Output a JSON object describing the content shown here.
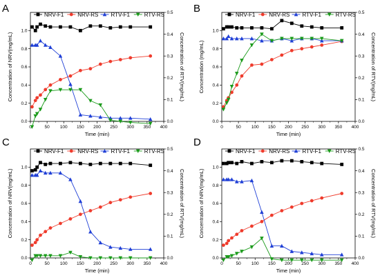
{
  "legend_labels": [
    "NRV-F1",
    "NRV-RS",
    "RTV-F1",
    "RTV-RS"
  ],
  "colors": {
    "NRV-F1": "#000000",
    "NRV-RS": "#ef3b2c",
    "RTV-F1": "#1f3fd6",
    "RTV-RS": "#1a9a1a"
  },
  "chart_data": [
    {
      "type": "line",
      "panel": "A",
      "xlabel": "Time (min)",
      "ylabel_left": "Concentration of NRV(mg/mL)",
      "ylabel_right": "Concentration of RTV(mg/mL)",
      "xlim": [
        0,
        400
      ],
      "ylim_left": [
        0,
        1.2
      ],
      "ylim_right": [
        0,
        0.5
      ],
      "xticks": [
        0,
        50,
        100,
        150,
        200,
        250,
        300,
        350,
        400
      ],
      "yticks_left": [
        0.0,
        0.2,
        0.4,
        0.6,
        0.8,
        1.0
      ],
      "yticks_right": [
        0.0,
        0.1,
        0.2,
        0.3,
        0.4,
        0.5
      ],
      "series": [
        {
          "name": "NRV-F1",
          "axis": "left",
          "marker": "square",
          "x": [
            5,
            15,
            20,
            30,
            45,
            60,
            90,
            120,
            150,
            180,
            210,
            240,
            270,
            300,
            360
          ],
          "y": [
            1.04,
            1.0,
            1.04,
            1.07,
            1.05,
            1.04,
            1.04,
            1.04,
            1.0,
            1.05,
            1.05,
            1.03,
            1.04,
            1.04,
            1.04
          ]
        },
        {
          "name": "NRV-RS",
          "axis": "left",
          "marker": "circle",
          "x": [
            5,
            15,
            20,
            30,
            45,
            60,
            90,
            120,
            150,
            180,
            210,
            240,
            270,
            300,
            360
          ],
          "y": [
            0.16,
            0.23,
            0.26,
            0.29,
            0.35,
            0.4,
            0.46,
            0.5,
            0.56,
            0.58,
            0.63,
            0.66,
            0.68,
            0.7,
            0.72
          ]
        },
        {
          "name": "RTV-F1",
          "axis": "right",
          "marker": "triangle-up",
          "x": [
            5,
            15,
            20,
            30,
            45,
            60,
            90,
            120,
            150,
            180,
            210,
            240,
            270,
            300,
            360
          ],
          "y": [
            0.35,
            0.35,
            0.35,
            0.37,
            0.35,
            0.34,
            0.3,
            0.17,
            0.03,
            0.025,
            0.02,
            0.015,
            0.015,
            0.015,
            0.01
          ]
        },
        {
          "name": "RTV-RS",
          "axis": "right",
          "marker": "triangle-down",
          "x": [
            5,
            15,
            20,
            30,
            45,
            60,
            90,
            120,
            150,
            180,
            210,
            240,
            270,
            300,
            360
          ],
          "y": [
            -0.025,
            0.025,
            0.035,
            0.055,
            0.1,
            0.14,
            0.145,
            0.145,
            0.145,
            0.095,
            0.075,
            0.005,
            0.0,
            -0.005,
            -0.01
          ]
        }
      ]
    },
    {
      "type": "line",
      "panel": "B",
      "xlabel": "Time (min)",
      "ylabel_left": "Concentration (mg/mL)",
      "ylabel_right": "Concentration of RTV(mg/mL)",
      "xlim": [
        0,
        400
      ],
      "ylim_left": [
        0,
        1.2
      ],
      "ylim_right": [
        0,
        0.5
      ],
      "xticks": [
        0,
        50,
        100,
        150,
        200,
        250,
        300,
        350,
        400
      ],
      "yticks_left": [
        0.0,
        0.2,
        0.4,
        0.6,
        0.8,
        1.0
      ],
      "yticks_right": [
        0.0,
        0.1,
        0.2,
        0.3,
        0.4,
        0.5
      ],
      "series": [
        {
          "name": "NRV-F1",
          "axis": "left",
          "marker": "square",
          "x": [
            5,
            15,
            20,
            30,
            45,
            60,
            90,
            120,
            150,
            180,
            210,
            240,
            270,
            300,
            360
          ],
          "y": [
            1.02,
            1.04,
            1.04,
            1.04,
            1.03,
            1.03,
            1.03,
            1.03,
            1.02,
            1.11,
            1.08,
            1.05,
            1.04,
            1.03,
            1.03
          ]
        },
        {
          "name": "NRV-RS",
          "axis": "left",
          "marker": "circle",
          "x": [
            5,
            15,
            20,
            30,
            45,
            60,
            90,
            120,
            150,
            180,
            210,
            240,
            270,
            300,
            360
          ],
          "y": [
            0.16,
            0.23,
            0.26,
            0.32,
            0.4,
            0.5,
            0.62,
            0.63,
            0.68,
            0.73,
            0.78,
            0.8,
            0.82,
            0.84,
            0.88
          ]
        },
        {
          "name": "RTV-F1",
          "axis": "right",
          "marker": "triangle-up",
          "x": [
            5,
            15,
            20,
            30,
            45,
            60,
            90,
            120,
            150,
            180,
            210,
            240,
            270,
            300,
            360
          ],
          "y": [
            0.38,
            0.38,
            0.39,
            0.38,
            0.38,
            0.38,
            0.38,
            0.37,
            0.37,
            0.38,
            0.37,
            0.38,
            0.38,
            0.37,
            0.37
          ]
        },
        {
          "name": "RTV-RS",
          "axis": "right",
          "marker": "triangle-down",
          "x": [
            5,
            15,
            20,
            30,
            45,
            60,
            90,
            120,
            150,
            180,
            210,
            240,
            270,
            300,
            360
          ],
          "y": [
            0.055,
            0.085,
            0.1,
            0.16,
            0.22,
            0.28,
            0.35,
            0.4,
            0.37,
            0.38,
            0.38,
            0.38,
            0.38,
            0.38,
            0.37
          ]
        }
      ]
    },
    {
      "type": "line",
      "panel": "C",
      "xlabel": "Time (min)",
      "ylabel_left": "Concentration of NRV(mg/mL)",
      "ylabel_right": "Concentration of RTV(mg/mL)",
      "xlim": [
        0,
        400
      ],
      "ylim_left": [
        0,
        1.2
      ],
      "ylim_right": [
        0,
        0.5
      ],
      "xticks": [
        0,
        50,
        100,
        150,
        200,
        250,
        300,
        350,
        400
      ],
      "yticks_left": [
        0.0,
        0.2,
        0.4,
        0.6,
        0.8,
        1.0
      ],
      "yticks_right": [
        0.0,
        0.1,
        0.2,
        0.3,
        0.4,
        0.5
      ],
      "series": [
        {
          "name": "NRV-F1",
          "axis": "left",
          "marker": "square",
          "x": [
            5,
            15,
            20,
            30,
            45,
            60,
            90,
            120,
            150,
            180,
            210,
            240,
            270,
            300,
            360
          ],
          "y": [
            0.96,
            0.97,
            1.0,
            1.05,
            1.03,
            1.04,
            1.04,
            1.05,
            1.04,
            1.03,
            1.04,
            1.04,
            1.04,
            1.04,
            1.02
          ]
        },
        {
          "name": "NRV-RS",
          "axis": "left",
          "marker": "circle",
          "x": [
            5,
            15,
            20,
            30,
            45,
            60,
            90,
            120,
            150,
            180,
            210,
            240,
            270,
            300,
            360
          ],
          "y": [
            0.14,
            0.17,
            0.2,
            0.25,
            0.29,
            0.33,
            0.38,
            0.43,
            0.48,
            0.52,
            0.56,
            0.61,
            0.64,
            0.67,
            0.71
          ]
        },
        {
          "name": "RTV-F1",
          "axis": "right",
          "marker": "triangle-up",
          "x": [
            5,
            15,
            20,
            30,
            45,
            60,
            90,
            120,
            150,
            180,
            210,
            240,
            270,
            300,
            360
          ],
          "y": [
            0.38,
            0.38,
            0.38,
            0.4,
            0.39,
            0.39,
            0.39,
            0.36,
            0.26,
            0.12,
            0.07,
            0.05,
            0.045,
            0.04,
            0.04
          ]
        },
        {
          "name": "RTV-RS",
          "axis": "right",
          "marker": "triangle-down",
          "x": [
            5,
            15,
            20,
            30,
            45,
            60,
            90,
            120,
            150,
            180,
            210,
            240,
            270,
            300,
            360
          ],
          "y": [
            -0.01,
            0.01,
            0.01,
            0.01,
            0.01,
            0.01,
            0.01,
            0.025,
            0.005,
            0.0,
            0.0,
            0.0,
            0.0,
            0.0,
            0.0
          ]
        }
      ]
    },
    {
      "type": "line",
      "panel": "D",
      "xlabel": "Time (min)",
      "ylabel_left": "Concentration of NRV(mg/mL)",
      "ylabel_right": "Concentration of RTV(mg/mL)",
      "xlim": [
        0,
        400
      ],
      "ylim_left": [
        0,
        1.2
      ],
      "ylim_right": [
        0,
        0.5
      ],
      "xticks": [
        0,
        50,
        100,
        150,
        200,
        250,
        300,
        350,
        400
      ],
      "yticks_left": [
        0.0,
        0.2,
        0.4,
        0.6,
        0.8,
        1.0
      ],
      "yticks_right": [
        0.0,
        0.1,
        0.2,
        0.3,
        0.4,
        0.5
      ],
      "series": [
        {
          "name": "NRV-F1",
          "axis": "left",
          "marker": "square",
          "x": [
            5,
            15,
            20,
            30,
            45,
            60,
            90,
            120,
            150,
            180,
            210,
            240,
            270,
            300,
            360
          ],
          "y": [
            1.04,
            1.04,
            1.05,
            1.05,
            1.04,
            1.06,
            1.04,
            1.06,
            1.05,
            1.07,
            1.07,
            1.06,
            1.05,
            1.04,
            1.03
          ]
        },
        {
          "name": "NRV-RS",
          "axis": "left",
          "marker": "circle",
          "x": [
            5,
            15,
            20,
            30,
            45,
            60,
            90,
            120,
            150,
            180,
            210,
            240,
            270,
            300,
            360
          ],
          "y": [
            0.14,
            0.16,
            0.19,
            0.22,
            0.26,
            0.3,
            0.35,
            0.4,
            0.47,
            0.52,
            0.56,
            0.6,
            0.63,
            0.66,
            0.71
          ]
        },
        {
          "name": "RTV-F1",
          "axis": "right",
          "marker": "triangle-up",
          "x": [
            5,
            15,
            20,
            30,
            45,
            60,
            90,
            120,
            150,
            180,
            210,
            240,
            270,
            300,
            360
          ],
          "y": [
            0.36,
            0.36,
            0.36,
            0.36,
            0.35,
            0.35,
            0.355,
            0.21,
            0.055,
            0.055,
            0.03,
            0.025,
            0.02,
            0.015,
            0.015
          ]
        },
        {
          "name": "RTV-RS",
          "axis": "right",
          "marker": "triangle-down",
          "x": [
            5,
            15,
            20,
            30,
            45,
            60,
            90,
            120,
            150,
            180,
            210,
            240,
            270,
            300,
            360
          ],
          "y": [
            -0.01,
            0.005,
            0.005,
            0.01,
            0.02,
            0.03,
            0.05,
            0.09,
            -0.005,
            -0.01,
            -0.01,
            -0.01,
            -0.01,
            -0.01,
            -0.01
          ]
        }
      ]
    }
  ]
}
